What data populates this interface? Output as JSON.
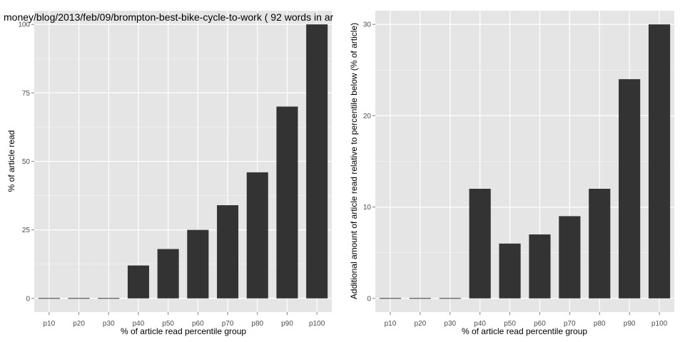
{
  "colors": {
    "panel": "#e5e5e5",
    "grid": "#ffffff",
    "bar": "#333333",
    "tick_text": "#4d4d4d"
  },
  "chart_data": [
    {
      "type": "bar",
      "title": "money/blog/2013/feb/09/brompton-best-bike-cycle-to-work ( 92 words in ar",
      "xlabel": "% of article read percentile group",
      "ylabel": "% of article read",
      "categories": [
        "p10",
        "p20",
        "p30",
        "p40",
        "p50",
        "p60",
        "p70",
        "p80",
        "p90",
        "p100"
      ],
      "values": [
        0,
        0,
        0,
        12,
        18,
        25,
        34,
        46,
        70,
        100
      ],
      "ylim": [
        -5,
        105
      ],
      "yticks": [
        0,
        25,
        50,
        75,
        100
      ],
      "grid": true
    },
    {
      "type": "bar",
      "title": "",
      "xlabel": "% of article read percentile group",
      "ylabel": "Additional amount of article read relative to percentile below (% of article)",
      "categories": [
        "p10",
        "p20",
        "p30",
        "p40",
        "p50",
        "p60",
        "p70",
        "p80",
        "p90",
        "p100"
      ],
      "values": [
        0,
        0,
        0,
        12,
        6,
        7,
        9,
        12,
        24,
        30
      ],
      "ylim": [
        -1.5,
        31.5
      ],
      "yticks": [
        0,
        10,
        20,
        30
      ],
      "grid": true
    }
  ]
}
